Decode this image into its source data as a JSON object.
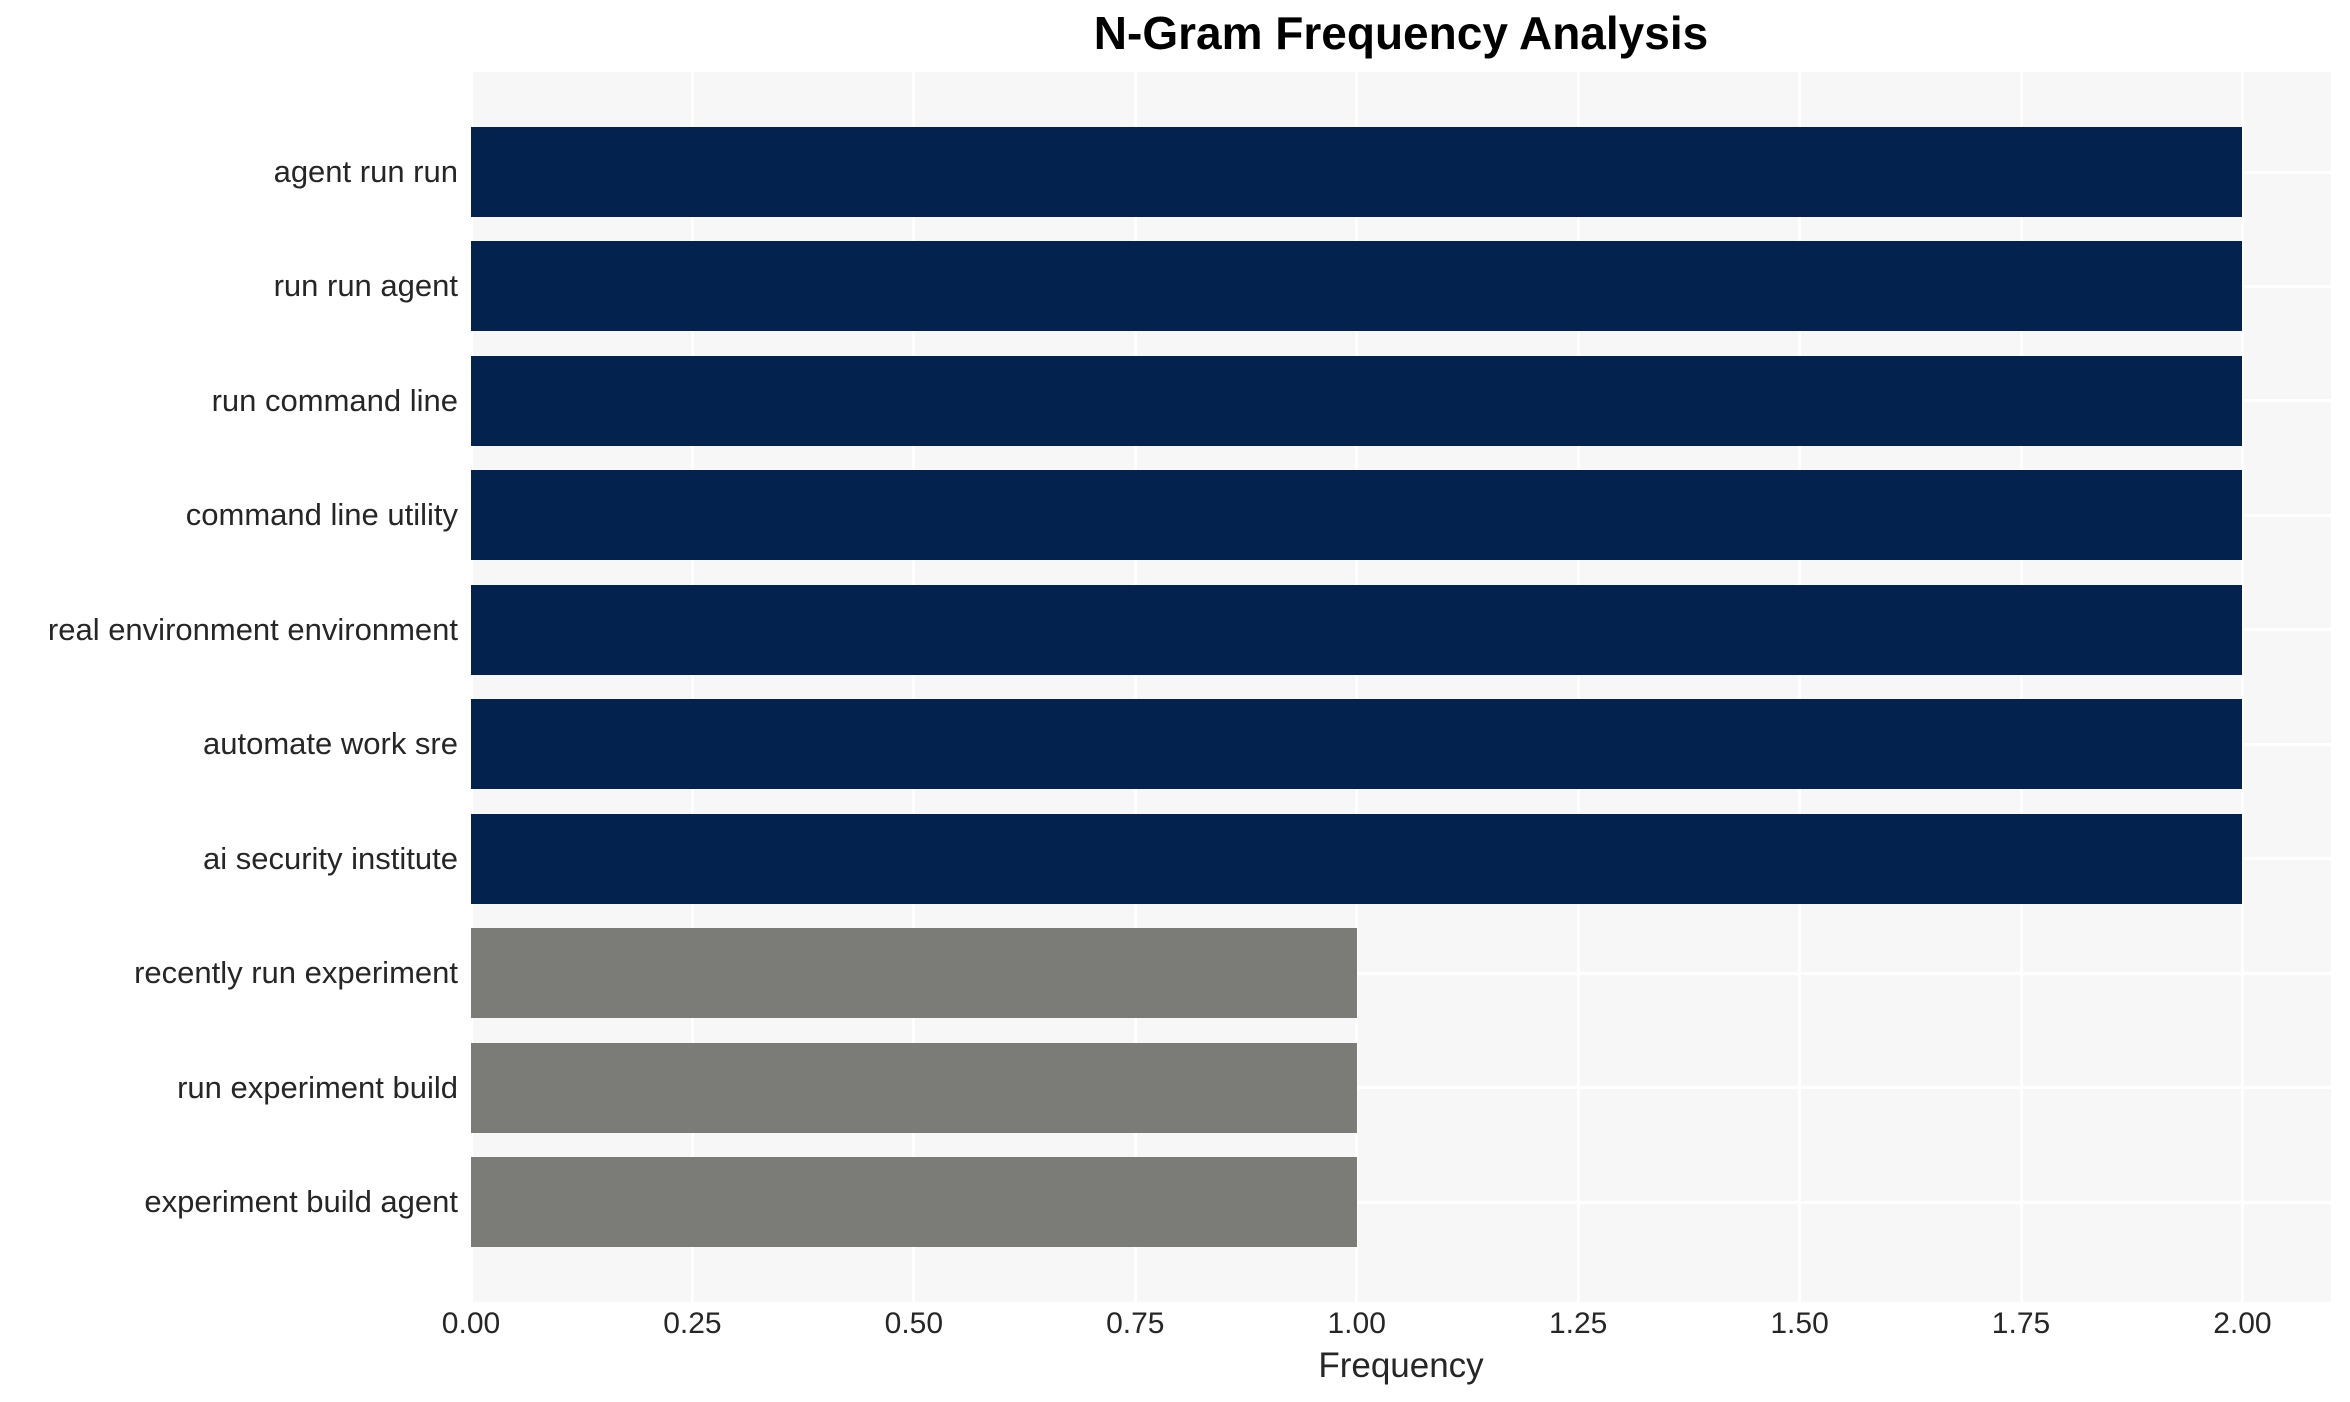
{
  "chart_data": {
    "type": "bar",
    "orientation": "horizontal",
    "title": "N-Gram Frequency Analysis",
    "xlabel": "Frequency",
    "ylabel": "",
    "categories": [
      "agent run run",
      "run run agent",
      "run command line",
      "command line utility",
      "real environment environment",
      "automate work sre",
      "ai security institute",
      "recently run experiment",
      "run experiment build",
      "experiment build agent"
    ],
    "values": [
      2,
      2,
      2,
      2,
      2,
      2,
      2,
      1,
      1,
      1
    ],
    "bar_colors": [
      "#03224e",
      "#03224e",
      "#03224e",
      "#03224e",
      "#03224e",
      "#03224e",
      "#03224e",
      "#7b7b78",
      "#7b7b78",
      "#7b7b78"
    ],
    "xlim": [
      0,
      2.1
    ],
    "xticks": {
      "values": [
        0,
        0.25,
        0.5,
        0.75,
        1.0,
        1.25,
        1.5,
        1.75,
        2.0
      ],
      "labels": [
        "0.00",
        "0.25",
        "0.50",
        "0.75",
        "1.00",
        "1.25",
        "1.50",
        "1.75",
        "2.00"
      ]
    },
    "grid": true,
    "legend": false,
    "colors": {
      "bar_frequency_2": "#03224e",
      "bar_frequency_1": "#7b7b78",
      "plot_background": "#f7f7f7",
      "grid_color": "#ffffff",
      "text_color": "#262626",
      "title_color": "#000000",
      "page_background": "#ffffff"
    }
  }
}
